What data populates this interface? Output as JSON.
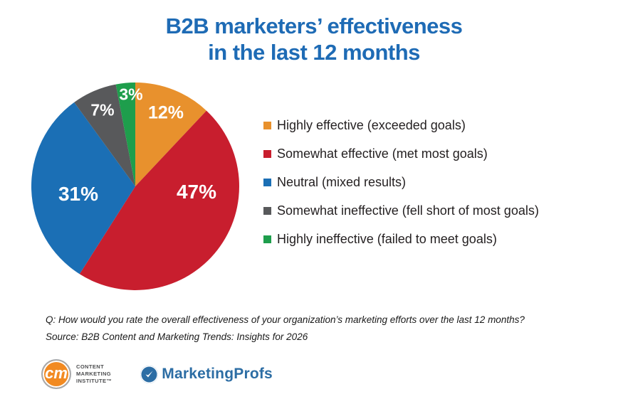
{
  "title": {
    "line1": "B2B marketers’ effectiveness",
    "line2": "in the last 12 months",
    "color": "#1e6bb5"
  },
  "chart_data": {
    "type": "pie",
    "title": "B2B marketers’ effectiveness in the last 12 months",
    "start_angle_deg": 0,
    "direction": "clockwise",
    "legend_position": "right",
    "value_label_color": "#ffffff",
    "slices": [
      {
        "label": "Highly effective (exceeded goals)",
        "value": 12,
        "pct_label": "12%",
        "color": "#e8912d"
      },
      {
        "label": "Somewhat effective (met most goals)",
        "value": 47,
        "pct_label": "47%",
        "color": "#c81e2e"
      },
      {
        "label": "Neutral (mixed results)",
        "value": 31,
        "pct_label": "31%",
        "color": "#1b6fb5"
      },
      {
        "label": "Somewhat ineffective (fell short of most goals)",
        "value": 7,
        "pct_label": "7%",
        "color": "#58595b"
      },
      {
        "label": "Highly ineffective (failed to meet goals)",
        "value": 3,
        "pct_label": "3%",
        "color": "#1e9e4c"
      }
    ]
  },
  "footnote": {
    "question": "Q: How would you rate the overall effectiveness of your organization’s marketing efforts over the last 12 months?",
    "source": "Source: B2B Content and Marketing Trends: Insights for 2026"
  },
  "footer": {
    "cmi_logo": {
      "monogram": "cm",
      "line1": "CONTENT",
      "line2": "MARKETING",
      "line3": "INSTITUTE™",
      "circle_color": "#f28a21"
    },
    "marketingprofs_logo": {
      "wordmark": "MarketingProfs",
      "color": "#2c6da4"
    }
  }
}
